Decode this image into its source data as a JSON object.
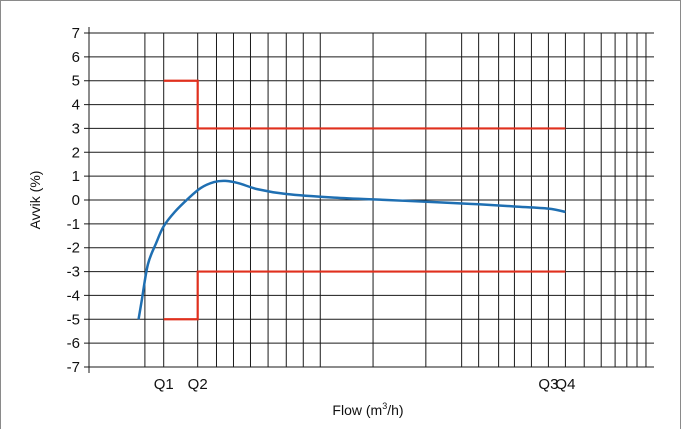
{
  "chart_data": {
    "type": "line",
    "ylabel": "Avvik (%)",
    "xlabel": {
      "prefix": "Flow  (m",
      "sup": "3",
      "suffix": "/h)"
    },
    "ylim": [
      -7,
      7
    ],
    "y_ticks": [
      "7",
      "6",
      "5",
      "4",
      "3",
      "2",
      "1",
      "0",
      "-1",
      "-2",
      "-3",
      "-4",
      "-5",
      "-6",
      "-7"
    ],
    "x_scale": "log",
    "grid": true,
    "x_ticks": [
      {
        "label": "Q1",
        "x": 0.016
      },
      {
        "label": "Q2",
        "x": 0.025
      },
      {
        "label": "Q3",
        "x": 2.5
      },
      {
        "label": "Q4",
        "x": 3.125
      }
    ],
    "x_gridlines": [
      0.0125,
      0.016,
      0.025,
      0.032,
      0.04,
      0.05,
      0.063,
      0.08,
      0.1,
      0.125,
      0.25,
      0.5,
      0.8,
      1.0,
      1.3,
      1.6,
      2.0,
      2.5,
      3.125,
      4.0,
      5.0,
      6.0,
      7.0,
      8.0,
      9.0
    ],
    "x_range": [
      0.006,
      10.0
    ],
    "series": [
      {
        "role": "error-curve",
        "color": "#1f6fb2",
        "points": [
          [
            0.0115,
            -5.0
          ],
          [
            0.012,
            -4.2
          ],
          [
            0.013,
            -2.7
          ],
          [
            0.0145,
            -1.8
          ],
          [
            0.016,
            -1.1
          ],
          [
            0.0185,
            -0.5
          ],
          [
            0.022,
            0.05
          ],
          [
            0.026,
            0.5
          ],
          [
            0.031,
            0.75
          ],
          [
            0.036,
            0.8
          ],
          [
            0.043,
            0.7
          ],
          [
            0.055,
            0.45
          ],
          [
            0.08,
            0.25
          ],
          [
            0.15,
            0.1
          ],
          [
            0.3,
            0.0
          ],
          [
            0.6,
            -0.1
          ],
          [
            1.0,
            -0.18
          ],
          [
            1.6,
            -0.27
          ],
          [
            2.5,
            -0.36
          ],
          [
            3.125,
            -0.5
          ]
        ]
      },
      {
        "role": "upper-limit",
        "color": "#e0301e",
        "points": [
          [
            0.016,
            5
          ],
          [
            0.025,
            5
          ],
          [
            0.025,
            3
          ],
          [
            3.125,
            3
          ]
        ]
      },
      {
        "role": "lower-limit",
        "color": "#e0301e",
        "points": [
          [
            0.016,
            -5
          ],
          [
            0.025,
            -5
          ],
          [
            0.025,
            -3
          ],
          [
            3.125,
            -3
          ]
        ]
      }
    ]
  }
}
